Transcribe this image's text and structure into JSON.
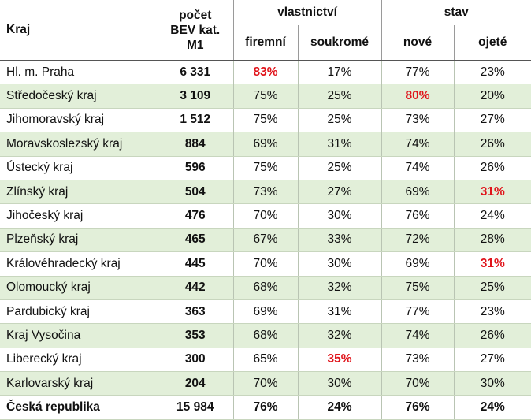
{
  "header": {
    "kraj": "Kraj",
    "pocet_line1": "počet",
    "pocet_line2": "BEV kat.",
    "pocet_line3": "M1",
    "vlastnictvi": "vlastnictví",
    "firemni": "firemní",
    "soukrome": "soukromé",
    "stav": "stav",
    "nove": "nové",
    "ojete": "ojeté"
  },
  "rows": [
    {
      "kraj": "Hl. m. Praha",
      "pocet": "6 331",
      "firemni": "83%",
      "soukrome": "17%",
      "nove": "77%",
      "ojete": "23%"
    },
    {
      "kraj": "Středočeský kraj",
      "pocet": "3 109",
      "firemni": "75%",
      "soukrome": "25%",
      "nove": "80%",
      "ojete": "20%"
    },
    {
      "kraj": "Jihomoravský kraj",
      "pocet": "1 512",
      "firemni": "75%",
      "soukrome": "25%",
      "nove": "73%",
      "ojete": "27%"
    },
    {
      "kraj": "Moravskoslezský kraj",
      "pocet": "884",
      "firemni": "69%",
      "soukrome": "31%",
      "nove": "74%",
      "ojete": "26%"
    },
    {
      "kraj": "Ústecký kraj",
      "pocet": "596",
      "firemni": "75%",
      "soukrome": "25%",
      "nove": "74%",
      "ojete": "26%"
    },
    {
      "kraj": "Zlínský kraj",
      "pocet": "504",
      "firemni": "73%",
      "soukrome": "27%",
      "nove": "69%",
      "ojete": "31%"
    },
    {
      "kraj": "Jihočeský kraj",
      "pocet": "476",
      "firemni": "70%",
      "soukrome": "30%",
      "nove": "76%",
      "ojete": "24%"
    },
    {
      "kraj": "Plzeňský kraj",
      "pocet": "465",
      "firemni": "67%",
      "soukrome": "33%",
      "nove": "72%",
      "ojete": "28%"
    },
    {
      "kraj": "Královéhradecký kraj",
      "pocet": "445",
      "firemni": "70%",
      "soukrome": "30%",
      "nove": "69%",
      "ojete": "31%"
    },
    {
      "kraj": "Olomoucký kraj",
      "pocet": "442",
      "firemni": "68%",
      "soukrome": "32%",
      "nove": "75%",
      "ojete": "25%"
    },
    {
      "kraj": "Pardubický kraj",
      "pocet": "363",
      "firemni": "69%",
      "soukrome": "31%",
      "nove": "77%",
      "ojete": "23%"
    },
    {
      "kraj": "Kraj Vysočina",
      "pocet": "353",
      "firemni": "68%",
      "soukrome": "32%",
      "nove": "74%",
      "ojete": "26%"
    },
    {
      "kraj": "Liberecký kraj",
      "pocet": "300",
      "firemni": "65%",
      "soukrome": "35%",
      "nove": "73%",
      "ojete": "27%"
    },
    {
      "kraj": "Karlovarský kraj",
      "pocet": "204",
      "firemni": "70%",
      "soukrome": "30%",
      "nove": "70%",
      "ojete": "30%"
    }
  ],
  "total": {
    "kraj": "Česká republika",
    "pocet": "15 984",
    "firemni": "76%",
    "soukrome": "24%",
    "nove": "76%",
    "ojete": "24%"
  },
  "highlight_color": "#e0141b",
  "row_shade_color": "#e2efd9"
}
